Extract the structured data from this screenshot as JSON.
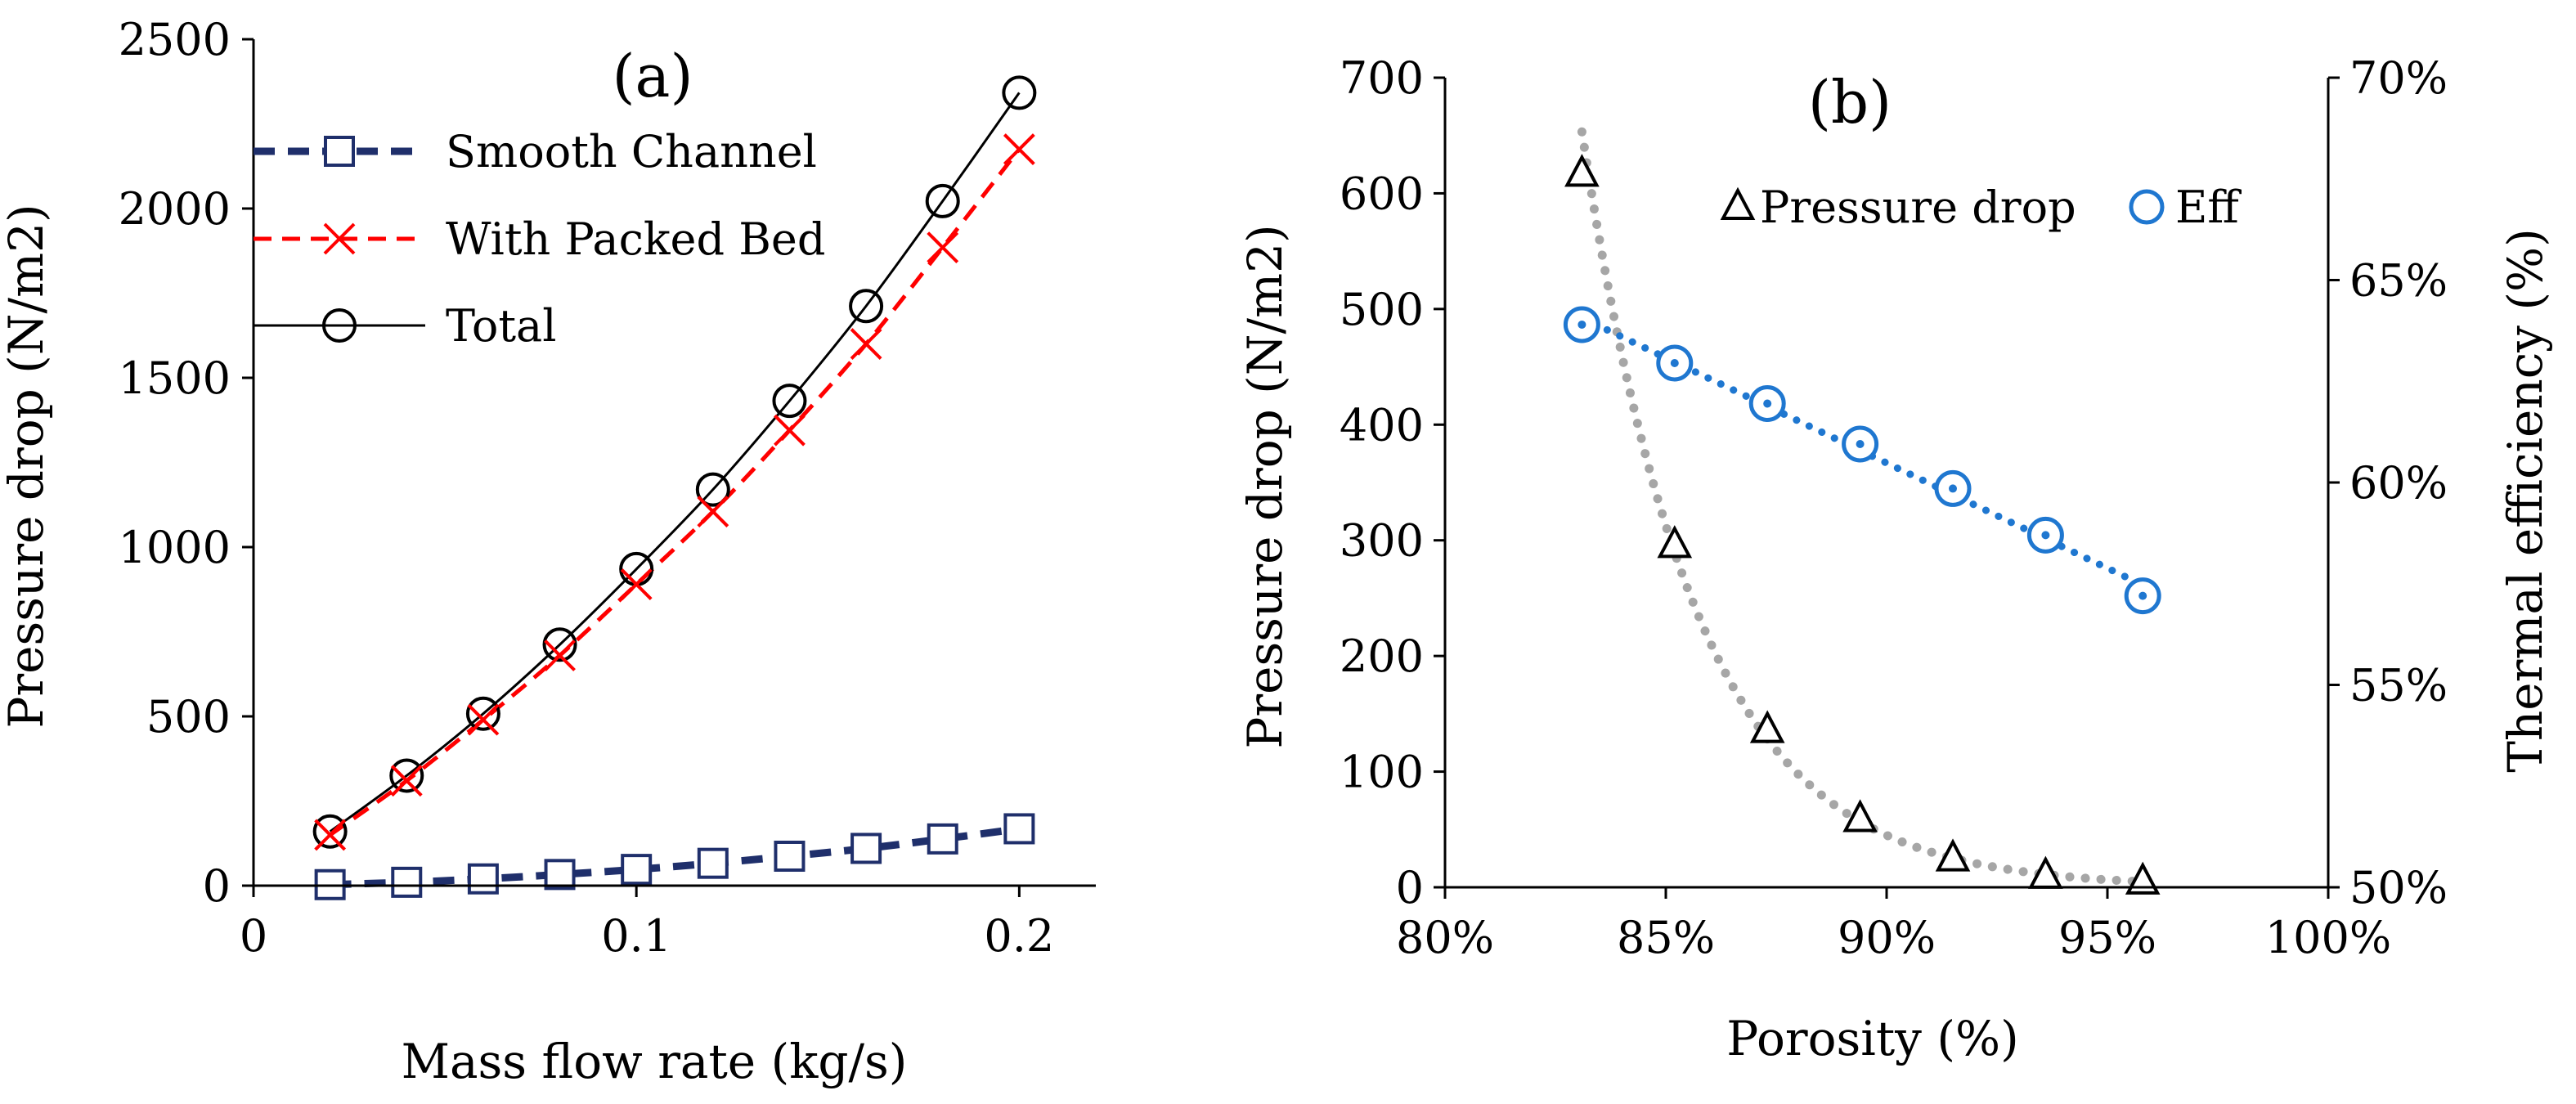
{
  "chart_data": [
    {
      "type": "line",
      "panel_label": "(a)",
      "title": "",
      "xlabel": "Mass flow rate (kg/s)",
      "ylabel": "Pressure drop (N/m2)",
      "xlim": [
        0,
        0.22
      ],
      "ylim": [
        0,
        2500
      ],
      "x_ticks": [
        0,
        0.1,
        0.2
      ],
      "x_tick_labels": [
        "0",
        "0.1",
        "0.2"
      ],
      "y_ticks": [
        0,
        500,
        1000,
        1500,
        2000,
        2500
      ],
      "y_tick_labels": [
        "0",
        "500",
        "1000",
        "1500",
        "2000",
        "2500"
      ],
      "grid": false,
      "legend_position": "top-left",
      "x": [
        0.02,
        0.04,
        0.06,
        0.08,
        0.1,
        0.12,
        0.14,
        0.16,
        0.18,
        0.2
      ],
      "series": [
        {
          "name": "Smooth Channel",
          "marker": "square",
          "line": "dashed-thick",
          "color": "#1f2f6b",
          "values": [
            3,
            10,
            20,
            33,
            48,
            66,
            87,
            110,
            138,
            168
          ]
        },
        {
          "name": "With Packed Bed",
          "marker": "x",
          "line": "dashed",
          "color": "#ff0000",
          "values": [
            150,
            310,
            490,
            680,
            890,
            1105,
            1345,
            1600,
            1885,
            2175
          ]
        },
        {
          "name": "Total",
          "marker": "circle",
          "line": "solid",
          "color": "#000000",
          "values": [
            160,
            325,
            508,
            712,
            935,
            1170,
            1432,
            1712,
            2022,
            2342
          ]
        }
      ]
    },
    {
      "type": "scatter",
      "panel_label": "(b)",
      "title": "",
      "xlabel": "Porosity (%)",
      "ylabel": "Pressure drop (N/m2)",
      "y2label": "Thermal efficiency (%)",
      "xlim": [
        80,
        100
      ],
      "ylim": [
        0,
        700
      ],
      "y2lim": [
        50,
        70
      ],
      "x_ticks": [
        80,
        85,
        90,
        95,
        100
      ],
      "x_tick_labels": [
        "80%",
        "85%",
        "90%",
        "95%",
        "100%"
      ],
      "y_ticks": [
        0,
        100,
        200,
        300,
        400,
        500,
        600,
        700
      ],
      "y_tick_labels": [
        "0",
        "100",
        "200",
        "300",
        "400",
        "500",
        "600",
        "700"
      ],
      "y2_ticks": [
        50,
        55,
        60,
        65,
        70
      ],
      "y2_tick_labels": [
        "50%",
        "55%",
        "60%",
        "65%",
        "70%"
      ],
      "grid": false,
      "legend_position": "top-center",
      "x": [
        83.1,
        85.2,
        87.3,
        89.4,
        91.5,
        93.6,
        95.8
      ],
      "series": [
        {
          "name": "Pressure drop",
          "axis": "left",
          "marker": "triangle",
          "color": "#000000",
          "trendline_color": "#a6a6a6",
          "values": [
            617,
            296,
            136,
            59,
            25,
            10,
            5
          ]
        },
        {
          "name": "Eff",
          "axis": "right",
          "marker": "circle-double",
          "color": "#1f77d0",
          "trendline_color": "#1f77d0",
          "values": [
            63.9,
            62.95,
            61.95,
            60.95,
            59.85,
            58.7,
            57.2
          ]
        }
      ]
    }
  ]
}
